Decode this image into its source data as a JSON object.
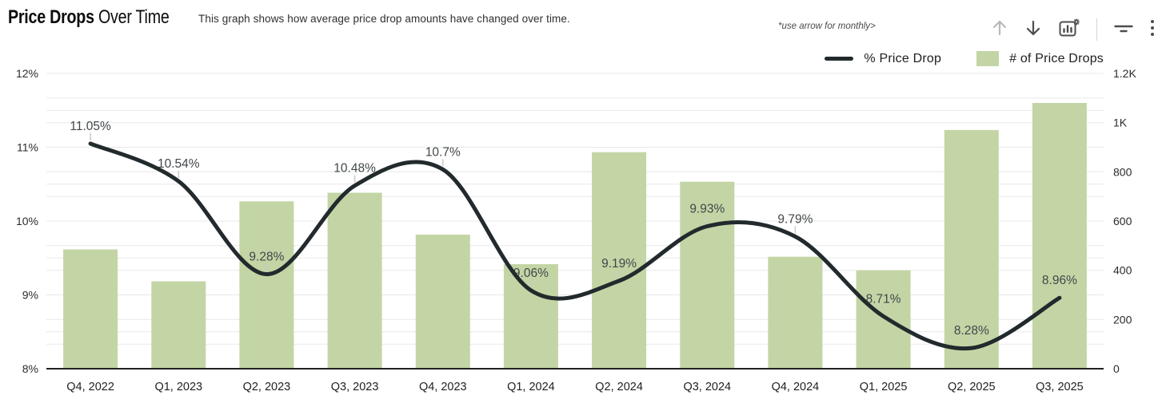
{
  "header": {
    "title_bold": "Price Drops",
    "title_light": " Over Time",
    "subtitle": "This graph shows how average price drop amounts have changed over time.",
    "annotation": "*use arrow for monthly>",
    "toolbar": {
      "icons": [
        "up-arrow-icon",
        "down-arrow-icon",
        "chart-settings-icon",
        "filter-icon",
        "kebab-menu-icon"
      ]
    }
  },
  "legend": [
    {
      "label": "% Price Drop",
      "swatch": "line",
      "color": "#222a2d"
    },
    {
      "label": "# of Price Drops",
      "swatch": "square",
      "color": "#c3d5a5"
    }
  ],
  "colors": {
    "bar": "#c3d5a5",
    "line": "#222a2d",
    "grid": "#e8e8e8",
    "axis_line": "#222222",
    "axis_text": "#2b2b2b",
    "point_label_text": "#41474a",
    "connector": "#c9c9c9",
    "icon_active": "#4d4d4d",
    "icon_disabled": "#b9b9b9"
  },
  "chart_data": {
    "type": "combo",
    "title": "Price Drops Over Time",
    "categories": [
      "Q4, 2022",
      "Q1, 2023",
      "Q2, 2023",
      "Q3, 2023",
      "Q4, 2023",
      "Q1, 2024",
      "Q2, 2024",
      "Q3, 2024",
      "Q4, 2024",
      "Q1, 2025",
      "Q2, 2025",
      "Q3, 2025"
    ],
    "series": [
      {
        "name": "% Price Drop",
        "type": "line",
        "axis": "left",
        "unit": "%",
        "color": "#222a2d",
        "values": [
          11.05,
          10.54,
          9.28,
          10.48,
          10.7,
          9.06,
          9.19,
          9.93,
          9.79,
          8.71,
          8.28,
          8.96
        ],
        "labels": [
          "11.05%",
          "10.54%",
          "9.28%",
          "10.48%",
          "10.7%",
          "9.06%",
          "9.19%",
          "9.93%",
          "9.79%",
          "8.71%",
          "8.28%",
          "8.96%"
        ]
      },
      {
        "name": "# of Price Drops",
        "type": "bar",
        "axis": "right",
        "color": "#c3d5a5",
        "values": [
          485,
          355,
          680,
          715,
          545,
          425,
          880,
          760,
          455,
          400,
          970,
          1080
        ]
      }
    ],
    "left_axis": {
      "min": 8,
      "max": 12,
      "minor_step": 0.5,
      "ticks": [
        {
          "label": "12%",
          "value": 12
        },
        {
          "label": "11%",
          "value": 11
        },
        {
          "label": "10%",
          "value": 10
        },
        {
          "label": "9%",
          "value": 9
        },
        {
          "label": "8%",
          "value": 8
        }
      ]
    },
    "right_axis": {
      "min": 0,
      "max": 1200,
      "minor_step": 100,
      "ticks": [
        {
          "label": "1.2K",
          "value": 1200
        },
        {
          "label": "1K",
          "value": 1000
        },
        {
          "label": "800",
          "value": 800
        },
        {
          "label": "600",
          "value": 600
        },
        {
          "label": "400",
          "value": 400
        },
        {
          "label": "200",
          "value": 200
        },
        {
          "label": "0",
          "value": 0
        }
      ]
    },
    "grid": true,
    "legend_position": "top-right"
  }
}
